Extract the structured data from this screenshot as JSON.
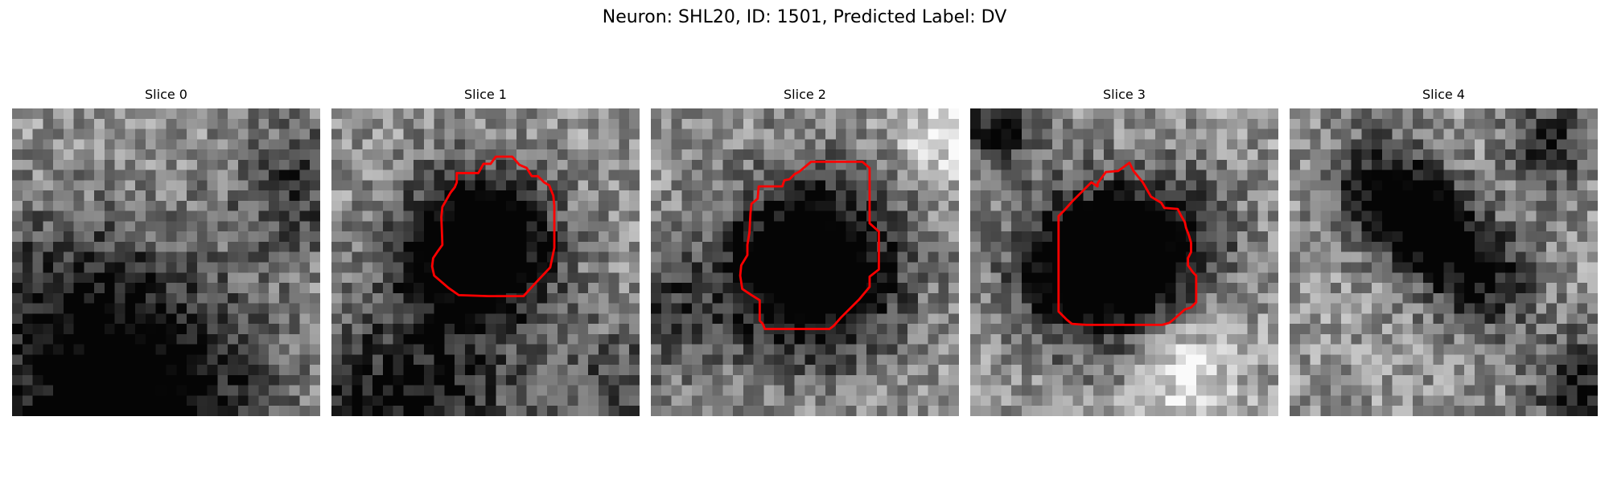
{
  "figure": {
    "title": "Neuron: SHL20, ID: 1501, Predicted Label: DV"
  },
  "panels": [
    {
      "title": "Slice 0",
      "has_outline": false,
      "outline_color": "#ff0000",
      "seed": 11,
      "blobs": [
        [
          0.37,
          0.92,
          0.3,
          -0.8
        ],
        [
          0.92,
          0.25,
          0.15,
          -0.35
        ],
        [
          0.1,
          0.55,
          0.18,
          -0.2
        ]
      ]
    },
    {
      "title": "Slice 1",
      "has_outline": true,
      "outline_color": "#ff0000",
      "seed": 23,
      "blobs": [
        [
          0.48,
          0.45,
          0.17,
          -0.95
        ],
        [
          0.25,
          0.98,
          0.25,
          -0.55
        ],
        [
          0.95,
          0.9,
          0.15,
          -0.3
        ]
      ]
    },
    {
      "title": "Slice 2",
      "has_outline": true,
      "outline_color": "#ff0000",
      "seed": 37,
      "blobs": [
        [
          0.52,
          0.52,
          0.2,
          -0.95
        ],
        [
          0.0,
          0.65,
          0.15,
          -0.35
        ],
        [
          0.95,
          0.1,
          0.1,
          0.3
        ]
      ]
    },
    {
      "title": "Slice 3",
      "has_outline": true,
      "outline_color": "#ff0000",
      "seed": 51,
      "blobs": [
        [
          0.4,
          0.52,
          0.17,
          -0.95
        ],
        [
          0.65,
          0.42,
          0.15,
          -0.45
        ],
        [
          0.08,
          0.05,
          0.1,
          -0.5
        ],
        [
          0.7,
          0.85,
          0.12,
          0.35
        ]
      ]
    },
    {
      "title": "Slice 4",
      "has_outline": false,
      "outline_color": "#ff0000",
      "seed": 67,
      "blobs": [
        [
          0.3,
          0.25,
          0.12,
          -0.55
        ],
        [
          0.45,
          0.38,
          0.1,
          -0.75
        ],
        [
          0.62,
          0.55,
          0.12,
          -0.55
        ],
        [
          0.85,
          0.12,
          0.1,
          -0.45
        ],
        [
          0.95,
          0.9,
          0.12,
          -0.5
        ]
      ]
    }
  ]
}
